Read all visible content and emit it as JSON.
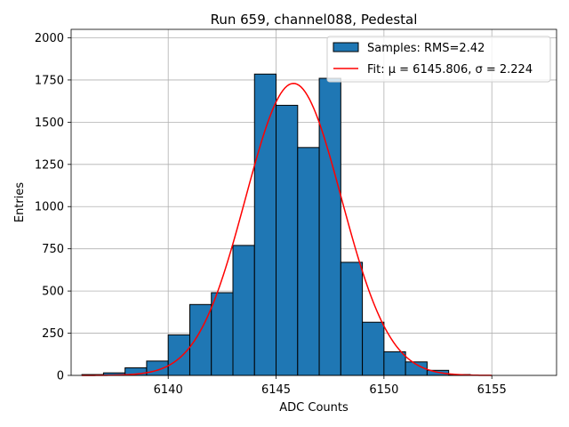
{
  "chart_data": {
    "type": "bar",
    "title": "Run 659, channel088, Pedestal",
    "xlabel": "ADC Counts",
    "ylabel": "Entries",
    "xlim": [
      6135.5,
      6158.0
    ],
    "ylim": [
      0,
      2050
    ],
    "xticks": [
      6140,
      6145,
      6150,
      6155
    ],
    "yticks": [
      0,
      250,
      500,
      750,
      1000,
      1250,
      1500,
      1750,
      2000
    ],
    "grid": true,
    "legend_position": "top-right",
    "colors": {
      "bar_fill": "#1f77b4",
      "bar_edge": "#000000",
      "fit_line": "#ff0000",
      "grid": "#b0b0b0"
    },
    "histogram": {
      "name": "Samples: RMS=2.42",
      "bin_width": 1,
      "bin_starts": [
        6136,
        6137,
        6138,
        6139,
        6140,
        6141,
        6142,
        6143,
        6144,
        6145,
        6146,
        6147,
        6148,
        6149,
        6150,
        6151,
        6152,
        6153,
        6154,
        6155,
        6156
      ],
      "values": [
        5,
        15,
        45,
        85,
        240,
        420,
        490,
        770,
        1785,
        1600,
        1350,
        1760,
        670,
        315,
        140,
        80,
        30,
        5,
        0,
        0,
        0
      ]
    },
    "fit": {
      "name": "Fit: μ = 6145.806, σ = 2.224",
      "mu": 6145.806,
      "sigma": 2.224,
      "amplitude": 1730,
      "x_range": [
        6136,
        6155
      ]
    }
  }
}
